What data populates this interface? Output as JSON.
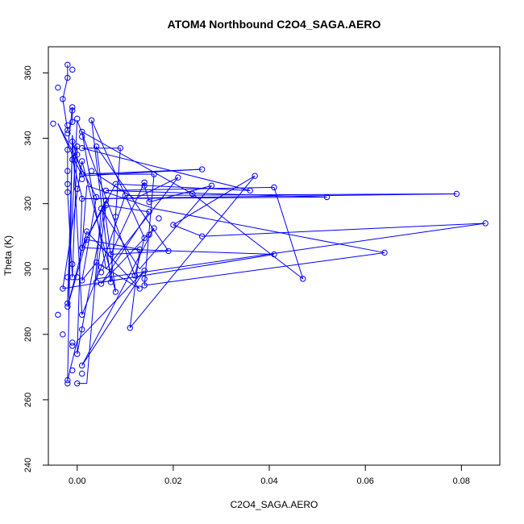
{
  "chart_data": {
    "type": "line",
    "title": "ATOM4 Northbound C2O4_SAGA.AERO",
    "xlabel": "C2O4_SAGA.AERO",
    "ylabel": "Theta (K)",
    "xlim": [
      -0.006,
      0.088
    ],
    "ylim": [
      240,
      368
    ],
    "xticks": [
      0.0,
      0.02,
      0.04,
      0.06,
      0.08
    ],
    "xtick_labels": [
      "0.00",
      "0.02",
      "0.04",
      "0.06",
      "0.08"
    ],
    "yticks": [
      240,
      260,
      280,
      300,
      320,
      340,
      360
    ],
    "ytick_labels": [
      "240",
      "260",
      "280",
      "300",
      "320",
      "340",
      "360"
    ],
    "grid": false,
    "legend": "none",
    "series": [
      {
        "color": "#0000ff",
        "marker": "open-circle",
        "points": [
          [
            -0.002,
            362.5
          ],
          [
            -0.001,
            361.0
          ],
          [
            -0.002,
            358.5
          ],
          [
            -0.004,
            355.5
          ],
          [
            -0.003,
            352.0
          ],
          [
            -0.001,
            349.5
          ],
          [
            -0.001,
            348.5
          ],
          [
            0.003,
            345.5
          ],
          [
            -0.001,
            345.0
          ],
          [
            0.0,
            346.0
          ],
          [
            -0.005,
            344.5
          ],
          [
            -0.002,
            344.0
          ],
          [
            -0.002,
            342.5
          ],
          [
            0.001,
            342.0
          ],
          [
            -0.002,
            341.5
          ],
          [
            0.001,
            340.5
          ],
          [
            -0.001,
            339.0
          ],
          [
            0.0,
            337.5
          ],
          [
            0.001,
            337.0
          ],
          [
            0.004,
            337.5
          ],
          [
            0.009,
            337.0
          ],
          [
            -0.002,
            336.5
          ],
          [
            0.0,
            335.0
          ],
          [
            -0.001,
            333.5
          ],
          [
            0.001,
            333.0
          ],
          [
            0.003,
            330.0
          ],
          [
            0.026,
            330.5
          ],
          [
            -0.002,
            330.0
          ],
          [
            0.001,
            329.0
          ],
          [
            0.016,
            329.0
          ],
          [
            0.037,
            328.5
          ],
          [
            0.021,
            328.0
          ],
          [
            0.001,
            327.5
          ],
          [
            -0.002,
            326.0
          ],
          [
            0.008,
            326.0
          ],
          [
            0.014,
            326.5
          ],
          [
            0.014,
            325.5
          ],
          [
            0.028,
            325.5
          ],
          [
            0.041,
            325.0
          ],
          [
            0.0,
            324.5
          ],
          [
            0.006,
            324.0
          ],
          [
            0.036,
            324.0
          ],
          [
            -0.002,
            323.5
          ],
          [
            0.024,
            323.0
          ],
          [
            0.079,
            323.0
          ],
          [
            0.01,
            322.5
          ],
          [
            0.004,
            322.0
          ],
          [
            0.052,
            322.0
          ],
          [
            0.001,
            321.5
          ],
          [
            0.006,
            321.0
          ],
          [
            0.015,
            320.5
          ],
          [
            0.006,
            319.5
          ],
          [
            0.005,
            318.5
          ],
          [
            0.015,
            317.5
          ],
          [
            0.017,
            315.5
          ],
          [
            0.008,
            316.0
          ],
          [
            0.085,
            314.0
          ],
          [
            0.016,
            312.5
          ],
          [
            0.002,
            311.5
          ],
          [
            0.02,
            313.5
          ],
          [
            0.026,
            310.0
          ],
          [
            0.002,
            309.0
          ],
          [
            0.015,
            310.5
          ],
          [
            0.014,
            309.5
          ],
          [
            0.007,
            304.5
          ],
          [
            0.041,
            304.5
          ],
          [
            0.064,
            305.0
          ],
          [
            0.019,
            305.5
          ],
          [
            0.013,
            306.0
          ],
          [
            0.001,
            306.5
          ],
          [
            0.004,
            302.0
          ],
          [
            -0.001,
            301.5
          ],
          [
            0.005,
            300.5
          ],
          [
            0.014,
            299.5
          ],
          [
            0.005,
            299.0
          ],
          [
            0.012,
            298.0
          ],
          [
            -0.002,
            297.5
          ],
          [
            -0.001,
            297.5
          ],
          [
            0.0,
            297.5
          ],
          [
            0.014,
            297.0
          ],
          [
            0.047,
            297.0
          ],
          [
            0.001,
            296.5
          ],
          [
            0.004,
            296.0
          ],
          [
            0.007,
            296.0
          ],
          [
            0.005,
            295.5
          ],
          [
            0.014,
            295.0
          ],
          [
            0.013,
            294.0
          ],
          [
            -0.003,
            294.0
          ],
          [
            0.008,
            293.0
          ],
          [
            -0.002,
            289.5
          ],
          [
            -0.002,
            288.5
          ],
          [
            -0.004,
            286.0
          ],
          [
            0.001,
            286.0
          ],
          [
            0.011,
            282.0
          ],
          [
            0.001,
            281.5
          ],
          [
            -0.003,
            280.0
          ],
          [
            -0.001,
            277.5
          ],
          [
            -0.001,
            276.5
          ],
          [
            0.0,
            274.0
          ],
          [
            0.001,
            270.5
          ],
          [
            0.001,
            268.0
          ],
          [
            -0.002,
            266.0
          ],
          [
            -0.002,
            265.0
          ],
          [
            0.0,
            265.0
          ],
          [
            -0.001,
            269.0
          ]
        ],
        "path": [
          [
            -0.002,
            362.5
          ],
          [
            -0.002,
            358.5
          ],
          [
            -0.003,
            352.0
          ],
          [
            -0.002,
            342.5
          ],
          [
            -0.001,
            345.0
          ],
          [
            -0.001,
            349.5
          ],
          [
            -0.002,
            336.5
          ],
          [
            -0.002,
            330.0
          ],
          [
            -0.002,
            323.5
          ],
          [
            -0.001,
            297.5
          ],
          [
            0.0,
            337.5
          ],
          [
            -0.001,
            333.5
          ],
          [
            0.001,
            322.0
          ],
          [
            0.0,
            274.0
          ],
          [
            0.006,
            321.0
          ],
          [
            0.001,
            306.5
          ],
          [
            0.008,
            326.0
          ],
          [
            0.036,
            324.0
          ],
          [
            0.001,
            337.0
          ],
          [
            0.009,
            337.0
          ],
          [
            0.007,
            296.0
          ],
          [
            0.003,
            345.5
          ],
          [
            0.014,
            309.5
          ],
          [
            0.012,
            298.0
          ],
          [
            0.0,
            345.5
          ],
          [
            -0.002,
            289.5
          ],
          [
            -0.001,
            339.0
          ],
          [
            0.001,
            329.0
          ],
          [
            0.026,
            330.5
          ],
          [
            0.001,
            328.5
          ],
          [
            -0.004,
            344.5
          ],
          [
            0.004,
            322.0
          ],
          [
            0.001,
            296.5
          ],
          [
            0.004,
            302.0
          ],
          [
            0.013,
            294.0
          ],
          [
            0.002,
            311.5
          ],
          [
            -0.002,
            288.5
          ],
          [
            0.002,
            309.0
          ],
          [
            0.013,
            306.0
          ],
          [
            0.011,
            282.0
          ],
          [
            0.037,
            328.5
          ],
          [
            0.02,
            313.5
          ],
          [
            0.026,
            310.0
          ],
          [
            0.085,
            314.0
          ],
          [
            0.004,
            297.0
          ],
          [
            0.006,
            319.5
          ],
          [
            0.015,
            317.5
          ],
          [
            0.005,
            295.5
          ],
          [
            0.016,
            312.5
          ],
          [
            0.001,
            270.5
          ],
          [
            0.014,
            299.5
          ],
          [
            0.0,
            278.0
          ],
          [
            -0.002,
            266.0
          ],
          [
            -0.001,
            341.0
          ],
          [
            0.001,
            286.0
          ],
          [
            0.005,
            300.5
          ],
          [
            0.01,
            322.5
          ],
          [
            0.079,
            323.0
          ],
          [
            0.001,
            321.5
          ],
          [
            0.052,
            322.0
          ],
          [
            0.006,
            324.0
          ],
          [
            0.041,
            325.0
          ],
          [
            0.047,
            297.0
          ],
          [
            0.024,
            323.0
          ],
          [
            0.001,
            342.0
          ],
          [
            0.006,
            300.0
          ],
          [
            0.021,
            328.0
          ],
          [
            0.012,
            321.5
          ],
          [
            0.004,
            329.0
          ],
          [
            0.016,
            329.0
          ],
          [
            0.014,
            295.0
          ],
          [
            0.064,
            305.0
          ],
          [
            0.016,
            318.5
          ],
          [
            0.002,
            325.5
          ],
          [
            0.001,
            306.5
          ],
          [
            0.041,
            304.5
          ],
          [
            -0.003,
            294.0
          ],
          [
            0.001,
            333.0
          ],
          [
            0.008,
            293.0
          ],
          [
            0.004,
            337.5
          ],
          [
            0.019,
            305.5
          ],
          [
            0.007,
            304.5
          ],
          [
            0.014,
            326.5
          ],
          [
            0.014,
            325.5
          ],
          [
            0.015,
            320.5
          ],
          [
            0.028,
            325.5
          ],
          [
            0.013,
            300.0
          ],
          [
            0.005,
            318.5
          ],
          [
            0.002,
            265.0
          ],
          [
            0.0,
            265.0
          ]
        ]
      }
    ]
  }
}
